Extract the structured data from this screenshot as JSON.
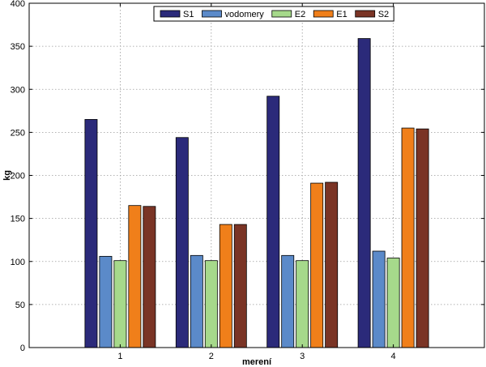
{
  "chart_data": {
    "type": "bar",
    "categories": [
      "1",
      "2",
      "3",
      "4"
    ],
    "xlabel": "merení",
    "ylabel": "kg",
    "ylim": [
      0,
      400
    ],
    "yticks": [
      0,
      50,
      100,
      150,
      200,
      250,
      300,
      350,
      400
    ],
    "xlim": [
      0,
      5
    ],
    "grid": true,
    "legend_position": "top-center",
    "series": [
      {
        "name": "S1",
        "color": "#2b2a7a",
        "values": [
          265,
          244,
          292,
          359
        ]
      },
      {
        "name": "vodomery",
        "color": "#5b8ac9",
        "values": [
          106,
          107,
          107,
          112
        ]
      },
      {
        "name": "E2",
        "color": "#a6d98b",
        "values": [
          101,
          101,
          101,
          104
        ]
      },
      {
        "name": "E1",
        "color": "#f07f1a",
        "values": [
          165,
          143,
          191,
          255
        ]
      },
      {
        "name": "S2",
        "color": "#7a3425",
        "values": [
          164,
          143,
          192,
          254
        ]
      }
    ]
  }
}
